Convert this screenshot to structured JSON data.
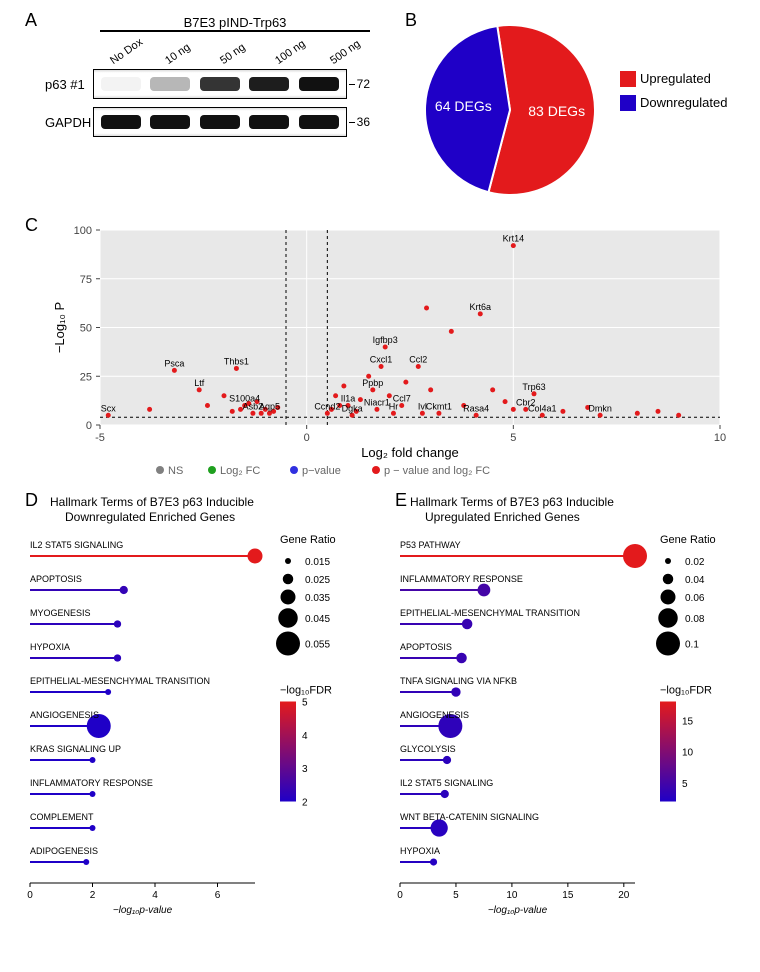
{
  "panelA": {
    "label": "A",
    "header": "B7E3 pIND-Trp63",
    "doses": [
      "No Dox",
      "10 ng",
      "50 ng",
      "100 ng",
      "500 ng"
    ],
    "rows": [
      {
        "label": "p63 #1",
        "marker": "72",
        "intensities": [
          5,
          30,
          85,
          95,
          100
        ]
      },
      {
        "label": "GAPDH",
        "marker": "36",
        "intensities": [
          95,
          95,
          100,
          100,
          100
        ]
      }
    ]
  },
  "panelB": {
    "label": "B",
    "type": "pie",
    "slices": [
      {
        "label": "83 DEGs",
        "value": 83,
        "color": "#e31a1c",
        "legend": "Upregulated"
      },
      {
        "label": "64 DEGs",
        "value": 64,
        "color": "#1f00c7",
        "legend": "Downregulated"
      }
    ],
    "legend_colors": [
      "#e31a1c",
      "#1f00c7"
    ],
    "legend_text": [
      "Upregulated",
      "Downregulated"
    ]
  },
  "panelC": {
    "label": "C",
    "type": "volcano",
    "xlabel": "Log₂ fold change",
    "ylabel": "−Log₁₀ P",
    "xlim": [
      -5,
      10
    ],
    "ylim": [
      0,
      100
    ],
    "xticks": [
      -5,
      0,
      5,
      10
    ],
    "yticks": [
      0,
      25,
      50,
      75,
      100
    ],
    "threshold_x": [
      -0.5,
      0.5
    ],
    "threshold_y": 4,
    "point_color": "#e31a1c",
    "background_color": "#e8e8e8",
    "grid_color": "#ffffff",
    "legend": [
      {
        "label": "NS",
        "color": "#808080"
      },
      {
        "label": "Log₂ FC",
        "color": "#1fa01f"
      },
      {
        "label": "p−value",
        "color": "#3030e0"
      },
      {
        "label": "p − value and log₂ FC",
        "color": "#e31a1c"
      }
    ],
    "labeled_points": [
      {
        "name": "Krt14",
        "x": 5.0,
        "y": 92
      },
      {
        "name": "Krt6a",
        "x": 4.2,
        "y": 57
      },
      {
        "name": "Igfbp3",
        "x": 1.9,
        "y": 40
      },
      {
        "name": "Cxcl1",
        "x": 1.8,
        "y": 30
      },
      {
        "name": "Ccl2",
        "x": 2.7,
        "y": 30
      },
      {
        "name": "Psca",
        "x": -3.2,
        "y": 28
      },
      {
        "name": "Thbs1",
        "x": -1.7,
        "y": 29
      },
      {
        "name": "Ltf",
        "x": -2.6,
        "y": 18
      },
      {
        "name": "Ppbp",
        "x": 1.6,
        "y": 18
      },
      {
        "name": "Trp63",
        "x": 5.5,
        "y": 16
      },
      {
        "name": "S100a4",
        "x": -1.5,
        "y": 10
      },
      {
        "name": "Asb2",
        "x": -1.3,
        "y": 6
      },
      {
        "name": "Aqp5",
        "x": -0.9,
        "y": 6
      },
      {
        "name": "Scx",
        "x": -4.8,
        "y": 5
      },
      {
        "name": "Ccnd2",
        "x": 0.5,
        "y": 6
      },
      {
        "name": "Il1a",
        "x": 1.0,
        "y": 10
      },
      {
        "name": "Dgka",
        "x": 1.1,
        "y": 5
      },
      {
        "name": "Niacr1",
        "x": 1.7,
        "y": 8
      },
      {
        "name": "Hr",
        "x": 2.1,
        "y": 6
      },
      {
        "name": "Ccl7",
        "x": 2.3,
        "y": 10
      },
      {
        "name": "Ivl",
        "x": 2.8,
        "y": 6
      },
      {
        "name": "Ckmt1",
        "x": 3.2,
        "y": 6
      },
      {
        "name": "Rasa4",
        "x": 4.1,
        "y": 5
      },
      {
        "name": "Cbr2",
        "x": 5.3,
        "y": 8
      },
      {
        "name": "Col4a1",
        "x": 5.7,
        "y": 5
      },
      {
        "name": "Dmkn",
        "x": 7.1,
        "y": 5
      }
    ],
    "unlabeled_points": [
      {
        "x": -2.0,
        "y": 15
      },
      {
        "x": -1.2,
        "y": 12
      },
      {
        "x": -1.0,
        "y": 8
      },
      {
        "x": -0.8,
        "y": 7
      },
      {
        "x": -2.4,
        "y": 10
      },
      {
        "x": -3.8,
        "y": 8
      },
      {
        "x": -1.6,
        "y": 8
      },
      {
        "x": -1.4,
        "y": 11
      },
      {
        "x": 0.7,
        "y": 15
      },
      {
        "x": 0.9,
        "y": 20
      },
      {
        "x": 1.3,
        "y": 13
      },
      {
        "x": 1.5,
        "y": 25
      },
      {
        "x": 2.0,
        "y": 15
      },
      {
        "x": 2.4,
        "y": 22
      },
      {
        "x": 3.0,
        "y": 18
      },
      {
        "x": 3.5,
        "y": 48
      },
      {
        "x": 3.8,
        "y": 10
      },
      {
        "x": 4.5,
        "y": 18
      },
      {
        "x": 5.0,
        "y": 8
      },
      {
        "x": 6.2,
        "y": 7
      },
      {
        "x": 6.8,
        "y": 9
      },
      {
        "x": 8.0,
        "y": 6
      },
      {
        "x": 8.5,
        "y": 7
      },
      {
        "x": 9.0,
        "y": 5
      },
      {
        "x": 0.6,
        "y": 8
      },
      {
        "x": 0.8,
        "y": 10
      },
      {
        "x": 1.2,
        "y": 7
      },
      {
        "x": -0.7,
        "y": 9
      },
      {
        "x": -1.1,
        "y": 6
      },
      {
        "x": -1.8,
        "y": 7
      },
      {
        "x": 4.8,
        "y": 12
      },
      {
        "x": 2.9,
        "y": 60
      }
    ]
  },
  "panelD": {
    "label": "D",
    "title_l1": "Hallmark Terms of B7E3 p63 Inducible",
    "title_l2": "Downregulated Enriched Genes",
    "xlabel": "−log₁₀p-value",
    "xticks": [
      0,
      2,
      4,
      6
    ],
    "ratio_legend_title": "Gene Ratio",
    "ratio_legend": [
      0.015,
      0.025,
      0.035,
      0.045,
      0.055
    ],
    "fdr_legend_title": "−log₁₀FDR",
    "fdr_range": [
      2,
      5
    ],
    "fdr_ticks": [
      5,
      4,
      3,
      2
    ],
    "color_low": "#1f00c7",
    "color_high": "#e31a1c",
    "terms": [
      {
        "name": "IL2 STAT5 SIGNALING",
        "x": 7.2,
        "ratio": 0.035,
        "fdr": 5.2
      },
      {
        "name": "APOPTOSIS",
        "x": 3.0,
        "ratio": 0.02,
        "fdr": 2.3
      },
      {
        "name": "MYOGENESIS",
        "x": 2.8,
        "ratio": 0.018,
        "fdr": 2.2
      },
      {
        "name": "HYPOXIA",
        "x": 2.8,
        "ratio": 0.018,
        "fdr": 2.2
      },
      {
        "name": "EPITHELIAL-MESENCHYMAL TRANSITION",
        "x": 2.5,
        "ratio": 0.015,
        "fdr": 2.0
      },
      {
        "name": "ANGIOGENESIS",
        "x": 2.2,
        "ratio": 0.055,
        "fdr": 2.0
      },
      {
        "name": "KRAS SIGNALING UP",
        "x": 2.0,
        "ratio": 0.015,
        "fdr": 1.9
      },
      {
        "name": "INFLAMMATORY RESPONSE",
        "x": 2.0,
        "ratio": 0.015,
        "fdr": 1.9
      },
      {
        "name": "COMPLEMENT",
        "x": 2.0,
        "ratio": 0.015,
        "fdr": 1.9
      },
      {
        "name": "ADIPOGENESIS",
        "x": 1.8,
        "ratio": 0.015,
        "fdr": 1.8
      }
    ]
  },
  "panelE": {
    "label": "E",
    "title_l1": "Hallmark Terms of B7E3 p63 Inducible",
    "title_l2": "Upregulated Enriched Genes",
    "xlabel": "−log₁₀p-value",
    "xticks": [
      0,
      5,
      10,
      15,
      20
    ],
    "ratio_legend_title": "Gene Ratio",
    "ratio_legend": [
      0.02,
      0.04,
      0.06,
      0.08,
      0.1
    ],
    "fdr_legend_title": "−log₁₀FDR",
    "fdr_range": [
      2,
      18
    ],
    "fdr_ticks": [
      15,
      10,
      5
    ],
    "color_low": "#1f00c7",
    "color_high": "#e31a1c",
    "terms": [
      {
        "name": "P53 PATHWAY",
        "x": 21,
        "ratio": 0.1,
        "fdr": 18
      },
      {
        "name": "INFLAMMATORY RESPONSE",
        "x": 7.5,
        "ratio": 0.05,
        "fdr": 5
      },
      {
        "name": "EPITHELIAL-MESENCHYMAL TRANSITION",
        "x": 6,
        "ratio": 0.04,
        "fdr": 4
      },
      {
        "name": "APOPTOSIS",
        "x": 5.5,
        "ratio": 0.04,
        "fdr": 4
      },
      {
        "name": "TNFA SIGNALING VIA NFKB",
        "x": 5,
        "ratio": 0.035,
        "fdr": 3.5
      },
      {
        "name": "ANGIOGENESIS",
        "x": 4.5,
        "ratio": 0.1,
        "fdr": 3.2
      },
      {
        "name": "GLYCOLYSIS",
        "x": 4.2,
        "ratio": 0.03,
        "fdr": 3
      },
      {
        "name": "IL2 STAT5 SIGNALING",
        "x": 4.0,
        "ratio": 0.03,
        "fdr": 3
      },
      {
        "name": "WNT BETA-CATENIN SIGNALING",
        "x": 3.5,
        "ratio": 0.07,
        "fdr": 2.7
      },
      {
        "name": "HYPOXIA",
        "x": 3.0,
        "ratio": 0.025,
        "fdr": 2.5
      }
    ]
  }
}
